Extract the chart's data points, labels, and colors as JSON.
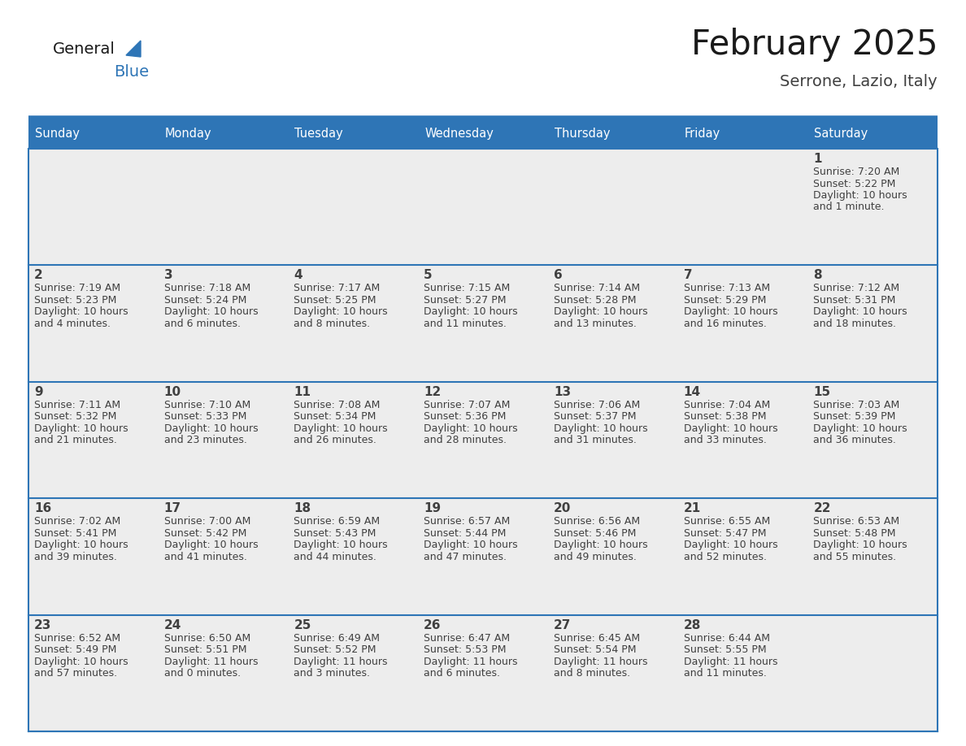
{
  "title": "February 2025",
  "subtitle": "Serrone, Lazio, Italy",
  "days_of_week": [
    "Sunday",
    "Monday",
    "Tuesday",
    "Wednesday",
    "Thursday",
    "Friday",
    "Saturday"
  ],
  "header_bg_color": "#2E75B6",
  "header_text_color": "#FFFFFF",
  "cell_bg_color": "#EDEDED",
  "cell_border_color": "#2E75B6",
  "day_num_color": "#404040",
  "info_text_color": "#404040",
  "title_color": "#1a1a1a",
  "subtitle_color": "#404040",
  "logo_general_color": "#1a1a1a",
  "logo_blue_color": "#2E75B6",
  "calendar": [
    [
      null,
      null,
      null,
      null,
      null,
      null,
      {
        "day": 1,
        "sunrise": "7:20 AM",
        "sunset": "5:22 PM",
        "daylight_h": "10 hours",
        "daylight_m": "and 1 minute."
      }
    ],
    [
      {
        "day": 2,
        "sunrise": "7:19 AM",
        "sunset": "5:23 PM",
        "daylight_h": "10 hours",
        "daylight_m": "and 4 minutes."
      },
      {
        "day": 3,
        "sunrise": "7:18 AM",
        "sunset": "5:24 PM",
        "daylight_h": "10 hours",
        "daylight_m": "and 6 minutes."
      },
      {
        "day": 4,
        "sunrise": "7:17 AM",
        "sunset": "5:25 PM",
        "daylight_h": "10 hours",
        "daylight_m": "and 8 minutes."
      },
      {
        "day": 5,
        "sunrise": "7:15 AM",
        "sunset": "5:27 PM",
        "daylight_h": "10 hours",
        "daylight_m": "and 11 minutes."
      },
      {
        "day": 6,
        "sunrise": "7:14 AM",
        "sunset": "5:28 PM",
        "daylight_h": "10 hours",
        "daylight_m": "and 13 minutes."
      },
      {
        "day": 7,
        "sunrise": "7:13 AM",
        "sunset": "5:29 PM",
        "daylight_h": "10 hours",
        "daylight_m": "and 16 minutes."
      },
      {
        "day": 8,
        "sunrise": "7:12 AM",
        "sunset": "5:31 PM",
        "daylight_h": "10 hours",
        "daylight_m": "and 18 minutes."
      }
    ],
    [
      {
        "day": 9,
        "sunrise": "7:11 AM",
        "sunset": "5:32 PM",
        "daylight_h": "10 hours",
        "daylight_m": "and 21 minutes."
      },
      {
        "day": 10,
        "sunrise": "7:10 AM",
        "sunset": "5:33 PM",
        "daylight_h": "10 hours",
        "daylight_m": "and 23 minutes."
      },
      {
        "day": 11,
        "sunrise": "7:08 AM",
        "sunset": "5:34 PM",
        "daylight_h": "10 hours",
        "daylight_m": "and 26 minutes."
      },
      {
        "day": 12,
        "sunrise": "7:07 AM",
        "sunset": "5:36 PM",
        "daylight_h": "10 hours",
        "daylight_m": "and 28 minutes."
      },
      {
        "day": 13,
        "sunrise": "7:06 AM",
        "sunset": "5:37 PM",
        "daylight_h": "10 hours",
        "daylight_m": "and 31 minutes."
      },
      {
        "day": 14,
        "sunrise": "7:04 AM",
        "sunset": "5:38 PM",
        "daylight_h": "10 hours",
        "daylight_m": "and 33 minutes."
      },
      {
        "day": 15,
        "sunrise": "7:03 AM",
        "sunset": "5:39 PM",
        "daylight_h": "10 hours",
        "daylight_m": "and 36 minutes."
      }
    ],
    [
      {
        "day": 16,
        "sunrise": "7:02 AM",
        "sunset": "5:41 PM",
        "daylight_h": "10 hours",
        "daylight_m": "and 39 minutes."
      },
      {
        "day": 17,
        "sunrise": "7:00 AM",
        "sunset": "5:42 PM",
        "daylight_h": "10 hours",
        "daylight_m": "and 41 minutes."
      },
      {
        "day": 18,
        "sunrise": "6:59 AM",
        "sunset": "5:43 PM",
        "daylight_h": "10 hours",
        "daylight_m": "and 44 minutes."
      },
      {
        "day": 19,
        "sunrise": "6:57 AM",
        "sunset": "5:44 PM",
        "daylight_h": "10 hours",
        "daylight_m": "and 47 minutes."
      },
      {
        "day": 20,
        "sunrise": "6:56 AM",
        "sunset": "5:46 PM",
        "daylight_h": "10 hours",
        "daylight_m": "and 49 minutes."
      },
      {
        "day": 21,
        "sunrise": "6:55 AM",
        "sunset": "5:47 PM",
        "daylight_h": "10 hours",
        "daylight_m": "and 52 minutes."
      },
      {
        "day": 22,
        "sunrise": "6:53 AM",
        "sunset": "5:48 PM",
        "daylight_h": "10 hours",
        "daylight_m": "and 55 minutes."
      }
    ],
    [
      {
        "day": 23,
        "sunrise": "6:52 AM",
        "sunset": "5:49 PM",
        "daylight_h": "10 hours",
        "daylight_m": "and 57 minutes."
      },
      {
        "day": 24,
        "sunrise": "6:50 AM",
        "sunset": "5:51 PM",
        "daylight_h": "11 hours",
        "daylight_m": "and 0 minutes."
      },
      {
        "day": 25,
        "sunrise": "6:49 AM",
        "sunset": "5:52 PM",
        "daylight_h": "11 hours",
        "daylight_m": "and 3 minutes."
      },
      {
        "day": 26,
        "sunrise": "6:47 AM",
        "sunset": "5:53 PM",
        "daylight_h": "11 hours",
        "daylight_m": "and 6 minutes."
      },
      {
        "day": 27,
        "sunrise": "6:45 AM",
        "sunset": "5:54 PM",
        "daylight_h": "11 hours",
        "daylight_m": "and 8 minutes."
      },
      {
        "day": 28,
        "sunrise": "6:44 AM",
        "sunset": "5:55 PM",
        "daylight_h": "11 hours",
        "daylight_m": "and 11 minutes."
      },
      null
    ]
  ],
  "fig_width": 11.88,
  "fig_height": 9.18,
  "dpi": 100
}
